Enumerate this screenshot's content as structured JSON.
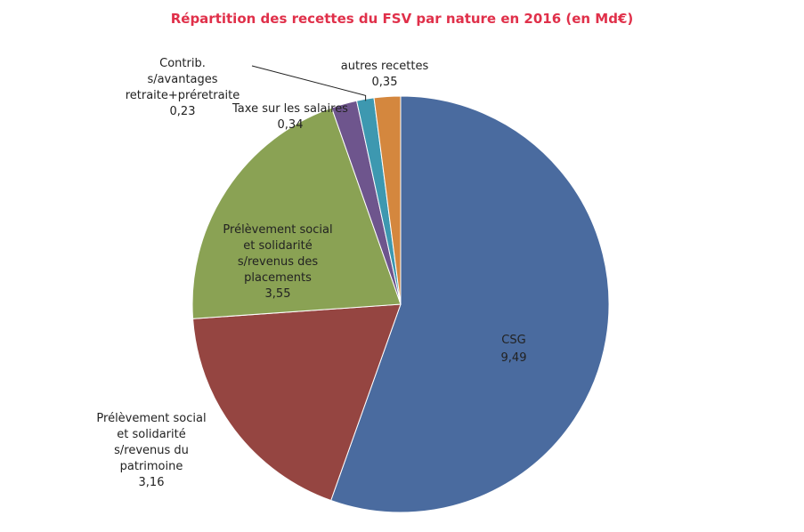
{
  "title_color": "#e0304a",
  "chart_data": {
    "type": "pie",
    "title": "Répartition des recettes du FSV par nature en 2016 (en Md€)",
    "slices": [
      {
        "key": "csg",
        "label": [
          "CSG"
        ],
        "value": 9.49,
        "value_label": "9,49",
        "color": "#4a6b9f"
      },
      {
        "key": "patrimoine",
        "label": [
          "Prélèvement social",
          "et solidarité",
          "s/revenus du",
          "patrimoine"
        ],
        "value": 3.16,
        "value_label": "3,16",
        "color": "#954541"
      },
      {
        "key": "placements",
        "label": [
          "Prélèvement social",
          "et solidarité",
          "s/revenus des",
          "placements"
        ],
        "value": 3.55,
        "value_label": "3,55",
        "color": "#8aa254"
      },
      {
        "key": "taxe",
        "label": [
          "Taxe sur les salaires"
        ],
        "value": 0.34,
        "value_label": "0,34",
        "color": "#6e558d"
      },
      {
        "key": "contrib",
        "label": [
          "Contrib.",
          "s/avantages",
          "retraite+préretraite"
        ],
        "value": 0.23,
        "value_label": "0,23",
        "color": "#3d98b0"
      },
      {
        "key": "autres",
        "label": [
          "autres recettes"
        ],
        "value": 0.35,
        "value_label": "0,35",
        "color": "#d4873e"
      }
    ]
  }
}
